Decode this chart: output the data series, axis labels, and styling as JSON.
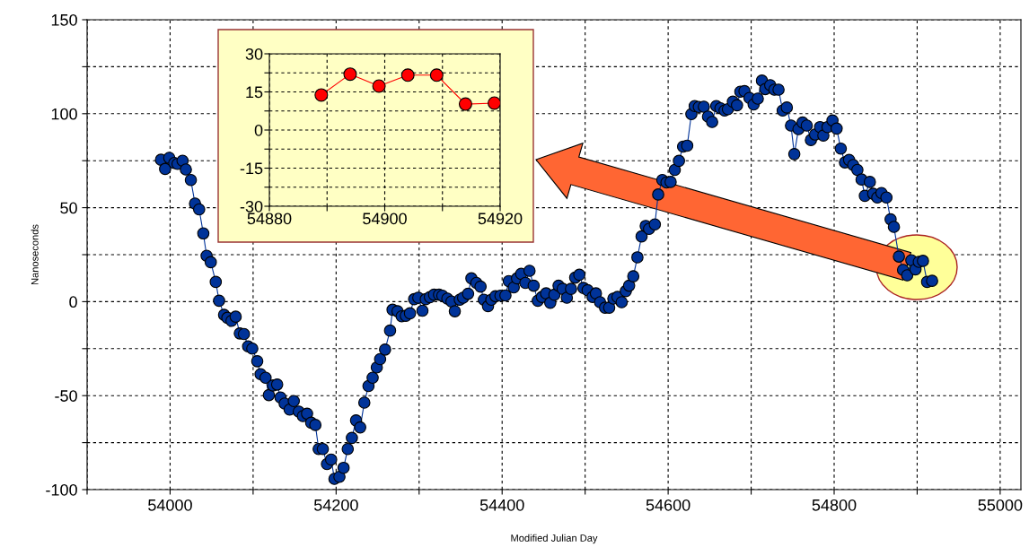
{
  "chart_data": [
    {
      "type": "line",
      "xlabel": "Modified Julian Day",
      "ylabel": "Nanoseconds",
      "marker": "circle",
      "line_style": "solid",
      "grid": true,
      "xlim": [
        53900,
        55025
      ],
      "ylim": [
        -100,
        150
      ],
      "xticks": [
        {
          "value": 53900,
          "label": null
        },
        54000,
        {
          "value": 54100,
          "label": null
        },
        54200,
        {
          "value": 54300,
          "label": null
        },
        54400,
        {
          "value": 54500,
          "label": null
        },
        54600,
        {
          "value": 54700,
          "label": null
        },
        54800,
        {
          "value": 54900,
          "label": null
        },
        55000
      ],
      "yticks": [
        -100,
        {
          "value": -75,
          "label": null
        },
        -50,
        {
          "value": -25,
          "label": null
        },
        0,
        {
          "value": 25,
          "label": null
        },
        50,
        {
          "value": 75,
          "label": null
        },
        100,
        {
          "value": 125,
          "label": null
        },
        150
      ],
      "series": [
        {
          "color": "#003399",
          "x": [
            53989,
            53994,
            53999,
            54005,
            54009,
            54015,
            54019,
            54025,
            54030,
            54035,
            54040,
            54044,
            54049,
            54055,
            54059,
            54065,
            54069,
            54074,
            54079,
            54084,
            54089,
            54094,
            54099,
            54105,
            54109,
            54115,
            54119,
            54124,
            54129,
            54133,
            54138,
            54144,
            54149,
            54155,
            54160,
            54165,
            54170,
            54175,
            54179,
            54184,
            54189,
            54194,
            54198,
            54204,
            54209,
            54214,
            54219,
            54224,
            54229,
            54234,
            54239,
            54244,
            54249,
            54253,
            54259,
            54265,
            54268,
            54274,
            54279,
            54284,
            54289,
            54294,
            54299,
            54304,
            54308,
            54313,
            54318,
            54324,
            54328,
            54334,
            54339,
            54343,
            54349,
            54353,
            54359,
            54363,
            54369,
            54374,
            54378,
            54383,
            54387,
            54392,
            54398,
            54404,
            54408,
            54414,
            54418,
            54423,
            54428,
            54433,
            54438,
            54443,
            54448,
            54453,
            54458,
            54463,
            54468,
            54473,
            54478,
            54483,
            54488,
            54493,
            54498,
            54503,
            54509,
            54513,
            54518,
            54524,
            54529,
            54534,
            54539,
            54544,
            54549,
            54553,
            54558,
            54563,
            54568,
            54573,
            54577,
            54584,
            54588,
            54593,
            54598,
            54603,
            54608,
            54613,
            54618,
            54623,
            54628,
            54632,
            54637,
            54643,
            54648,
            54653,
            54658,
            54663,
            54668,
            54672,
            54678,
            54683,
            54687,
            54692,
            54698,
            54703,
            54708,
            54713,
            54717,
            54723,
            54728,
            54733,
            54738,
            54743,
            54748,
            54752,
            54757,
            54762,
            54767,
            54772,
            54777,
            54783,
            54787,
            54792,
            54798,
            54803,
            54808,
            54813,
            54818,
            54823,
            54828,
            54833,
            54837,
            54843,
            54847,
            54852,
            54857,
            54863,
            54868,
            54872,
            54878,
            54883,
            54888,
            54893,
            54898,
            54902,
            54907,
            54912,
            54918
          ],
          "values": [
            75.5,
            70.6,
            76.5,
            73.8,
            73.3,
            75,
            70.3,
            64.7,
            52.2,
            49.1,
            36.3,
            24.4,
            21,
            10.5,
            0.5,
            -7,
            -8.6,
            -10.2,
            -8,
            -16.9,
            -17.2,
            -23.8,
            -25,
            -31.7,
            -38.6,
            -40.5,
            -49.7,
            -44.6,
            -44.1,
            -51,
            -54.2,
            -57.4,
            -52.9,
            -58.5,
            -60.9,
            -59.6,
            -64.4,
            -65.6,
            -78.4,
            -78.4,
            -86.4,
            -84,
            -94.3,
            -93.2,
            -88.4,
            -78.4,
            -72.5,
            -63.2,
            -66.9,
            -53.7,
            -44.9,
            -40.5,
            -35,
            -30.6,
            -25.5,
            -15.4,
            -4.3,
            -5.1,
            -7.8,
            -7.5,
            -6.2,
            1.3,
            2.1,
            -4.8,
            1.3,
            2.4,
            3.7,
            3.7,
            3.2,
            1.6,
            0.1,
            -5.1,
            1,
            2.1,
            4.2,
            12.4,
            10,
            8,
            1,
            -2.4,
            1,
            2.9,
            3.2,
            3.3,
            10.9,
            7.6,
            12.4,
            14.8,
            10,
            16.4,
            8.5,
            0.5,
            2.5,
            4.4,
            -0.6,
            3.7,
            8.5,
            6.8,
            2.1,
            6.8,
            12.8,
            14.3,
            7.3,
            6.1,
            2.5,
            4.4,
            -0.3,
            -3.2,
            -3.2,
            1.6,
            2.5,
            -0.3,
            5.6,
            8.5,
            13.5,
            23.6,
            34.7,
            40.3,
            38.7,
            41.1,
            57,
            64.7,
            63.4,
            63.7,
            70.1,
            74.9,
            82.5,
            83,
            99.8,
            104.1,
            103.6,
            103.7,
            98.5,
            95.6,
            104.1,
            102.9,
            101.7,
            102.4,
            106.4,
            104.5,
            111.7,
            112,
            108.4,
            104.9,
            108,
            117.6,
            113.1,
            115.2,
            112.8,
            112.8,
            101.7,
            103.3,
            93.7,
            78.5,
            91.8,
            95.3,
            93.7,
            86,
            88.9,
            92.9,
            88.4,
            92.9,
            96.4,
            92.1,
            81.4,
            74.1,
            75.4,
            72.7,
            70.1,
            65,
            56.3,
            63.7,
            57.4,
            55.4,
            57.8,
            55.4,
            43.8,
            39.8,
            24,
            16.9,
            14,
            22,
            17.2,
            21.2,
            21.7,
            10.5,
            11.1
          ]
        }
      ]
    },
    {
      "type": "line",
      "marker": "circle",
      "line_style": "solid",
      "grid": true,
      "xlim": [
        54880,
        54920
      ],
      "ylim": [
        -30,
        30
      ],
      "xticks": [
        54880,
        {
          "value": 54890,
          "label": null
        },
        54900,
        {
          "value": 54910,
          "label": null
        },
        54920
      ],
      "yticks": [
        -30,
        {
          "value": -22.5,
          "label": null
        },
        -15,
        {
          "value": -7.5,
          "label": null
        },
        0,
        {
          "value": 7.5,
          "label": null
        },
        15,
        {
          "value": 22.5,
          "label": null
        },
        30
      ],
      "series": [
        {
          "color": "#ff0000",
          "x": [
            54889,
            54894,
            54899,
            54904,
            54909,
            54914,
            54919
          ],
          "values": [
            13.8,
            22,
            17.3,
            21.6,
            21.6,
            10.2,
            10.6
          ]
        }
      ]
    }
  ]
}
